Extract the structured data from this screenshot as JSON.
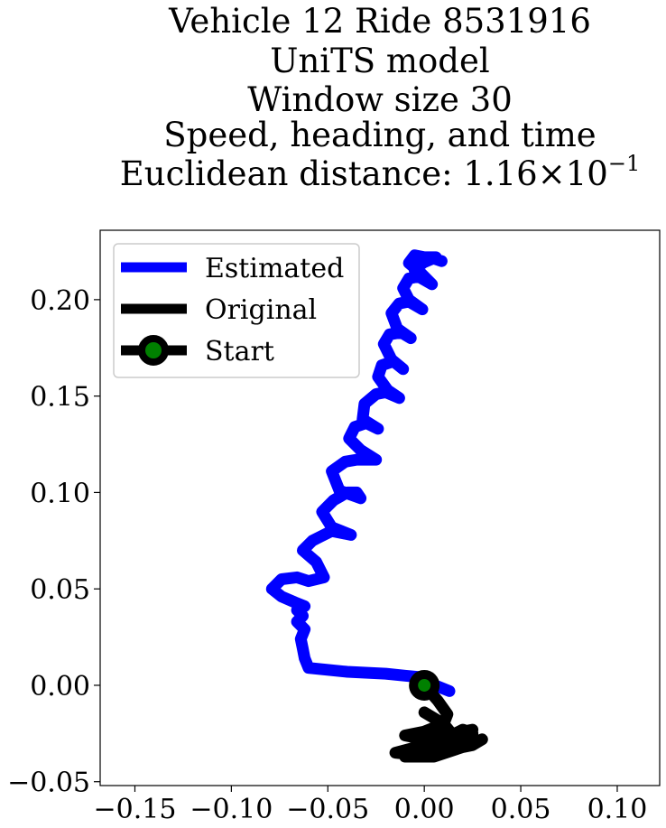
{
  "chart_data": {
    "type": "line",
    "title_lines": [
      "Vehicle 12 Ride 8531916",
      "UniTS model",
      "Window size 30",
      "Speed, heading, and time"
    ],
    "title_metric": {
      "prefix": "Euclidean distance: ",
      "mantissa": "1.16",
      "times": "×",
      "base": "10",
      "exponent": "−1"
    },
    "xlabel": "",
    "ylabel": "",
    "xlim": [
      -0.168,
      0.122
    ],
    "ylim": [
      -0.052,
      0.236
    ],
    "xticks": [
      -0.15,
      -0.1,
      -0.05,
      0.0,
      0.05,
      0.1
    ],
    "xtick_labels": [
      "−0.15",
      "−0.10",
      "−0.05",
      "0.00",
      "0.05",
      "0.10"
    ],
    "yticks": [
      -0.05,
      0.0,
      0.05,
      0.1,
      0.15,
      0.2
    ],
    "ytick_labels": [
      "−0.05",
      "0.00",
      "0.05",
      "0.10",
      "0.15",
      "0.20"
    ],
    "grid": false,
    "legend": {
      "location": "upper-left",
      "entries": [
        "Estimated",
        "Original",
        "Start"
      ]
    },
    "series": [
      {
        "name": "Estimated",
        "color": "#0000ff",
        "x": [
          0.013,
          0.003,
          0.0,
          -0.01,
          -0.02,
          -0.04,
          -0.06,
          -0.062,
          -0.063,
          -0.064,
          -0.062,
          -0.066,
          -0.063,
          -0.066,
          -0.062,
          -0.067,
          -0.074,
          -0.079,
          -0.074,
          -0.066,
          -0.06,
          -0.052,
          -0.056,
          -0.063,
          -0.058,
          -0.054,
          -0.048,
          -0.038,
          -0.048,
          -0.053,
          -0.047,
          -0.04,
          -0.035,
          -0.033,
          -0.044,
          -0.048,
          -0.041,
          -0.035,
          -0.025,
          -0.033,
          -0.039,
          -0.036,
          -0.03,
          -0.024,
          -0.032,
          -0.031,
          -0.025,
          -0.02,
          -0.013,
          -0.019,
          -0.024,
          -0.022,
          -0.016,
          -0.011,
          -0.017,
          -0.021,
          -0.018,
          -0.012,
          -0.007,
          -0.014,
          -0.017,
          -0.013,
          -0.008,
          -0.001,
          -0.008,
          -0.011,
          -0.008,
          -0.003,
          0.004,
          -0.002,
          -0.008,
          -0.005,
          0.0,
          0.006,
          -0.001,
          -0.005,
          -0.002,
          0.003,
          0.009
        ],
        "y": [
          -0.003,
          0.001,
          0.004,
          0.005,
          0.006,
          0.007,
          0.009,
          0.014,
          0.019,
          0.024,
          0.029,
          0.033,
          0.036,
          0.039,
          0.041,
          0.043,
          0.046,
          0.05,
          0.055,
          0.056,
          0.054,
          0.056,
          0.064,
          0.07,
          0.075,
          0.077,
          0.08,
          0.078,
          0.082,
          0.09,
          0.096,
          0.1,
          0.1,
          0.097,
          0.101,
          0.111,
          0.116,
          0.117,
          0.117,
          0.122,
          0.128,
          0.134,
          0.136,
          0.133,
          0.138,
          0.146,
          0.151,
          0.152,
          0.149,
          0.153,
          0.16,
          0.166,
          0.168,
          0.164,
          0.169,
          0.177,
          0.182,
          0.183,
          0.18,
          0.185,
          0.193,
          0.198,
          0.199,
          0.195,
          0.2,
          0.206,
          0.211,
          0.212,
          0.208,
          0.214,
          0.219,
          0.223,
          0.222,
          0.222,
          0.219,
          0.215,
          0.218,
          0.222,
          0.22
        ]
      },
      {
        "name": "Original",
        "color": "#000000",
        "x": [
          0.0,
          0.007,
          0.012,
          0.01,
          0.0,
          -0.01,
          -0.005,
          0.01,
          0.02,
          0.025,
          0.015,
          0.0,
          -0.015,
          -0.005,
          0.01,
          0.025,
          0.03,
          0.02,
          0.005,
          -0.01,
          0.0,
          0.015,
          0.025,
          0.02,
          0.01,
          -0.005,
          -0.01,
          0.005,
          0.015,
          0.01,
          0.0
        ],
        "y": [
          0.0,
          -0.008,
          -0.015,
          -0.02,
          -0.024,
          -0.026,
          -0.027,
          -0.026,
          -0.024,
          -0.023,
          -0.027,
          -0.031,
          -0.035,
          -0.036,
          -0.034,
          -0.031,
          -0.028,
          -0.032,
          -0.037,
          -0.037,
          -0.034,
          -0.03,
          -0.025,
          -0.023,
          -0.028,
          -0.033,
          -0.035,
          -0.032,
          -0.026,
          -0.02,
          -0.014
        ]
      }
    ],
    "start": {
      "name": "Start",
      "x": 0.0,
      "y": 0.0,
      "edge_color": "#000000",
      "fill_color": "#008000"
    }
  }
}
